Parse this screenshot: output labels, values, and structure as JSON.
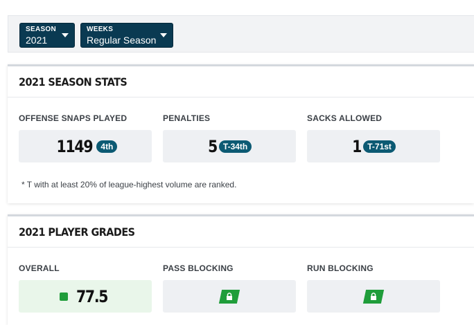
{
  "filters": {
    "season": {
      "label": "SEASON",
      "value": "2021"
    },
    "weeks": {
      "label": "WEEKS",
      "value": "Regular Season"
    }
  },
  "season_stats": {
    "title": "2021 SEASON STATS",
    "items": [
      {
        "label": "OFFENSE SNAPS PLAYED",
        "value": "1149",
        "rank": "4th"
      },
      {
        "label": "PENALTIES",
        "value": "5",
        "rank": "T-34th"
      },
      {
        "label": "SACKS ALLOWED",
        "value": "1",
        "rank": "T-71st"
      }
    ],
    "note": "* T with at least 20% of league-highest volume are ranked."
  },
  "player_grades": {
    "title": "2021 PLAYER GRADES",
    "overall": {
      "label": "OVERALL",
      "value": "77.5"
    },
    "pass_blocking": {
      "label": "PASS BLOCKING",
      "icon": "lock-icon"
    },
    "run_blocking": {
      "label": "RUN BLOCKING",
      "icon": "lock-icon"
    }
  }
}
